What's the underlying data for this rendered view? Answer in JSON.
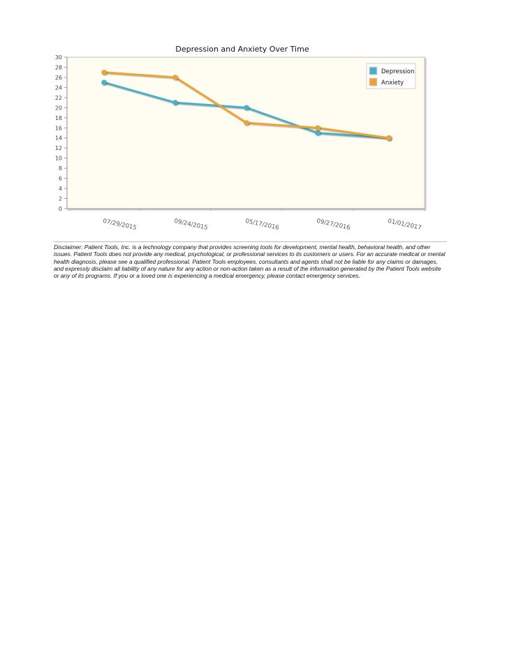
{
  "chart_data": {
    "type": "line",
    "title": "Depression and Anxiety Over Time",
    "categories": [
      "07/29/2015",
      "09/24/2015",
      "05/17/2016",
      "09/27/2016",
      "01/01/2017"
    ],
    "series": [
      {
        "name": "Depression",
        "values": [
          25,
          21,
          20,
          15,
          14
        ],
        "color": "#4eaec4"
      },
      {
        "name": "Anxiety",
        "values": [
          27,
          26,
          17,
          16,
          14
        ],
        "color": "#e9a53a"
      }
    ],
    "ylim": [
      0,
      30
    ],
    "yticks": [
      "0",
      "2",
      "4",
      "6",
      "8",
      "10",
      "12",
      "14",
      "16",
      "18",
      "20",
      "22",
      "24",
      "26",
      "28",
      "30"
    ],
    "xlabel": "",
    "ylabel": "",
    "legend_position": "top-right",
    "plot_background": "#fffcf1"
  },
  "disclaimer": {
    "text": "Disclaimer: Patient Tools, Inc. is a technology company that provides screening tools for development, mental health, behavioral health, and other issues. Patient Tools does not provide any medical, psychological, or professional services to its customers or users. For an accurate medical or mental health diagnosis, please see a qualified professional. Patient Tools employees, consultants and agents shall not be liable for any claims or damages, and expressly disclaim all liability of any nature for any action or non-action taken as a result of the information generated by the Patient Tools website or any of its programs. If you or a loved one is experiencing a medical emergency, please contact emergency services."
  }
}
